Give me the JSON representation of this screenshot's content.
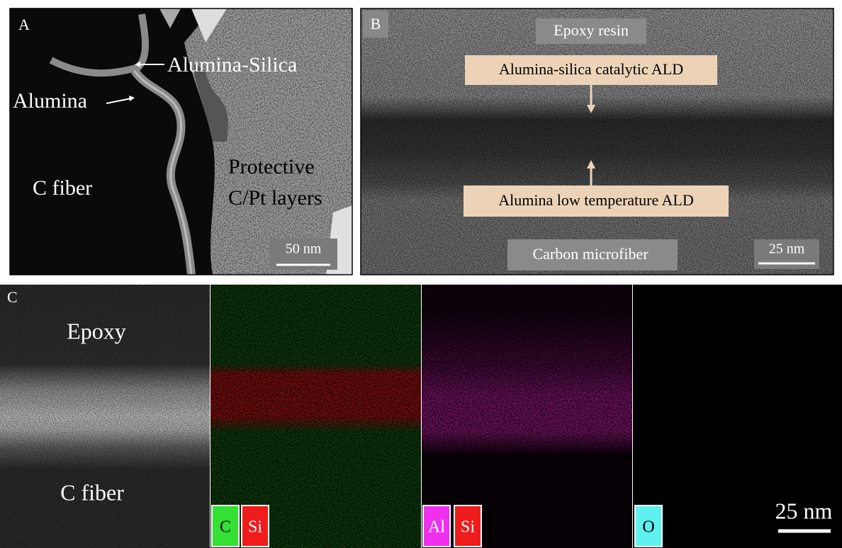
{
  "panel_a": {
    "label": "A",
    "alumina_silica": "Alumina-Silica",
    "alumina": "Alumina",
    "c_fiber": "C fiber",
    "protective": [
      "Protective",
      "C/Pt layers"
    ],
    "scale_bar": "50 nm"
  },
  "panel_b": {
    "label": "B",
    "epoxy_resin": "Epoxy resin",
    "catalytic_ald": "Alumina-silica catalytic ALD",
    "low_temp_ald": "Alumina low temperature ALD",
    "carbon_microfiber": "Carbon microfiber",
    "scale_bar": "25 nm"
  },
  "panel_c": {
    "label": "C",
    "epoxy": "Epoxy",
    "c_fiber": "C fiber",
    "maps": [
      {
        "legend": [
          "C",
          "Si"
        ]
      },
      {
        "legend": [
          "Al",
          "Si"
        ]
      },
      {
        "legend": [
          "O"
        ]
      }
    ],
    "scale_bar": "25 nm"
  }
}
